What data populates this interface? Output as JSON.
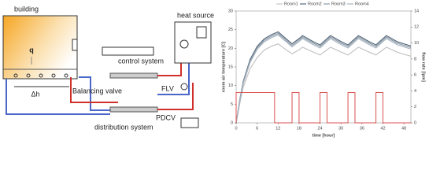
{
  "diagram": {
    "building": "building",
    "q": "q",
    "dh": "Δh",
    "heat_source": "heat source",
    "control_system": "control system",
    "balancing_valve": "Balancing valve",
    "flv": "FLV",
    "pdcv": "PDCV",
    "distribution_system": "distribution system"
  },
  "chart_data": {
    "type": "line",
    "x_label": "time [hour]",
    "y_label": "room air temperature [C]",
    "y2_label": "flow rate [lpm]",
    "x": [
      0,
      1,
      2,
      4,
      6,
      8,
      10,
      12,
      14,
      16,
      18,
      19,
      22,
      24,
      26,
      27,
      30,
      32,
      34,
      35,
      38,
      40,
      42,
      43,
      46,
      48,
      50
    ],
    "xlim": [
      0,
      50
    ],
    "xticks": [
      0,
      6,
      12,
      18,
      24,
      30,
      36,
      42,
      48
    ],
    "ylim": [
      0,
      30
    ],
    "yticks": [
      0,
      5,
      10,
      15,
      20,
      25,
      30
    ],
    "y2lim": [
      0,
      14
    ],
    "y2ticks": [
      0,
      2,
      4,
      6,
      8,
      10,
      12,
      14
    ],
    "legend": "top",
    "series": [
      {
        "name": "Room1",
        "color": "#c4c4c4",
        "values": [
          0,
          5,
          9.5,
          14.5,
          17.5,
          19.5,
          20.5,
          21.2,
          19.8,
          18.5,
          19.6,
          20.3,
          19,
          18.2,
          19.6,
          20.3,
          19,
          18.2,
          19.6,
          20.3,
          19,
          18.2,
          19.6,
          20.3,
          19,
          18.4,
          17.9
        ]
      },
      {
        "name": "Room2",
        "color": "#56697a",
        "values": [
          0,
          6,
          11,
          17,
          20.5,
          22.5,
          23.6,
          24.4,
          22.8,
          21.2,
          22.6,
          23.4,
          21.8,
          20.9,
          22.6,
          23.4,
          21.8,
          20.9,
          22.6,
          23.4,
          21.8,
          20.9,
          22.6,
          23.4,
          21.8,
          21.2,
          20.6
        ]
      },
      {
        "name": "Room3",
        "color": "#8c9cab",
        "values": [
          0,
          5.8,
          10.7,
          16.6,
          20.1,
          22.1,
          23.2,
          24,
          22.4,
          20.8,
          22.2,
          23,
          21.4,
          20.5,
          22.2,
          23,
          21.4,
          20.5,
          22.2,
          23,
          21.4,
          20.5,
          22.2,
          23,
          21.4,
          20.8,
          20.2
        ]
      },
      {
        "name": "Room4",
        "color": "#a9b4bf",
        "values": [
          0,
          5.6,
          10.4,
          16.2,
          19.7,
          21.7,
          22.8,
          23.6,
          22,
          20.4,
          21.8,
          22.6,
          21,
          20.1,
          21.8,
          22.6,
          21,
          20.1,
          21.8,
          22.6,
          21,
          20.1,
          21.8,
          22.6,
          21,
          20.4,
          19.8
        ]
      },
      {
        "color": "#d9534f",
        "axis": "y2",
        "x": [
          0,
          0,
          11,
          11,
          16,
          16,
          18,
          18,
          24,
          24,
          26,
          26,
          32,
          32,
          34,
          34,
          40,
          40,
          42,
          42,
          50
        ],
        "values": [
          0,
          3.8,
          3.8,
          0,
          0,
          3.8,
          3.8,
          0,
          0,
          3.8,
          3.8,
          0,
          0,
          3.8,
          3.8,
          0,
          0,
          3.8,
          3.8,
          0,
          0
        ]
      }
    ]
  }
}
